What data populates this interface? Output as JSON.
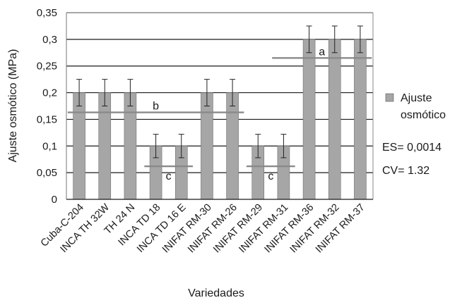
{
  "chart_data": {
    "type": "bar",
    "categories": [
      "Cuba-C-204",
      "INCA TH 32W",
      "TH 24 N",
      "INCA TD 18",
      "INCA TD 16 E",
      "INIFAT RM-30",
      "INIFAT RM-26",
      "INIFAT RM-29",
      "INIFAT RM-31",
      "INIFAT RM-36",
      "INIFAT RM-32",
      "INIFAT RM-37"
    ],
    "series": [
      {
        "name": "Ajuste osmótico",
        "values": [
          0.2,
          0.2,
          0.2,
          0.1,
          0.1,
          0.2,
          0.2,
          0.1,
          0.1,
          0.3,
          0.3,
          0.3
        ],
        "errors": [
          0.025,
          0.025,
          0.025,
          0.022,
          0.022,
          0.025,
          0.025,
          0.022,
          0.022,
          0.025,
          0.025,
          0.025
        ],
        "color": "#a6a6a6"
      }
    ],
    "xlabel": "Variedades",
    "ylabel": "Ajuste osmótico (MPa)",
    "ylim": [
      0,
      0.35
    ],
    "yticks": [
      0,
      0.05,
      0.1,
      0.15,
      0.2,
      0.25,
      0.3,
      0.35
    ],
    "ytick_labels": [
      "0",
      "0,05",
      "0,1",
      "0,15",
      "0,2",
      "0,25",
      "0,3",
      "0,35"
    ],
    "grid": true,
    "legend_position": "right",
    "group_annotations": [
      {
        "label": "a",
        "from_index": 8,
        "to_index": 11,
        "level": 0.265
      },
      {
        "label": "b",
        "from_index": 0,
        "to_index": 6,
        "level": 0.163
      },
      {
        "label": "c",
        "from_index": 3,
        "to_index": 4,
        "level": 0.062
      },
      {
        "label": "c",
        "from_index": 7,
        "to_index": 8,
        "level": 0.062
      }
    ],
    "stats": [
      "ES= 0,0014",
      "CV= 1.32"
    ]
  }
}
